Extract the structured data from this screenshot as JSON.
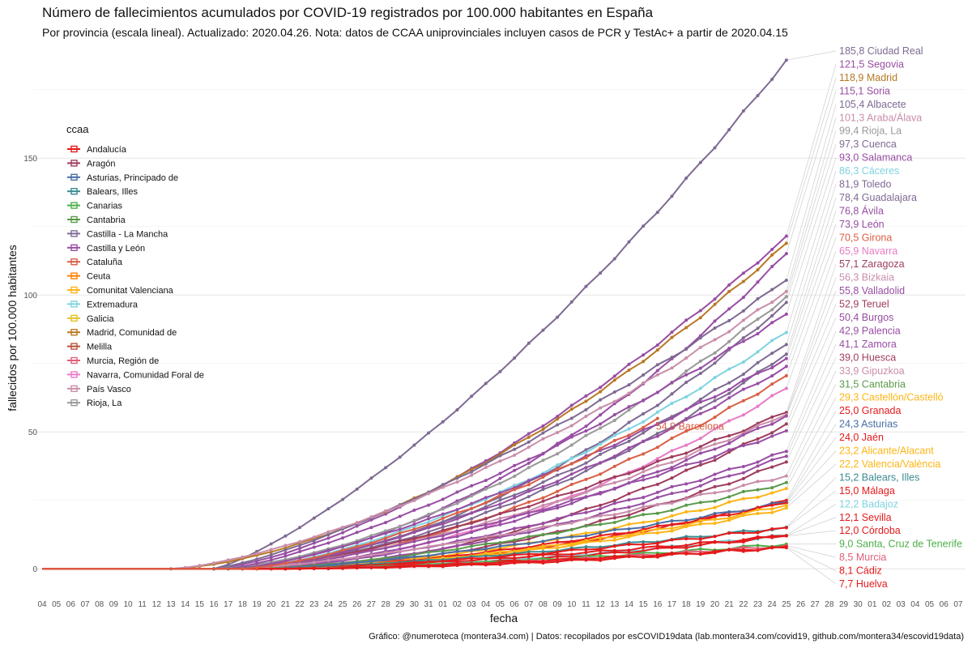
{
  "chart_data": {
    "type": "line",
    "title": "Número de fallecimientos acumulados por COVID-19 registrados por 100.000 habitantes en España",
    "subtitle": "Por provincia  (escala lineal). Actualizado: 2020.04.26. Nota: datos de CCAA uniprovinciales incluyen casos de PCR y TestAc+ a partir de 2020.04.15",
    "xlabel": "fecha",
    "ylabel": "fallecidos por 100.000 habitantes",
    "ylim": [
      -10,
      190
    ],
    "yticks": [
      0,
      50,
      100,
      150
    ],
    "xticks": [
      "04",
      "05",
      "06",
      "07",
      "08",
      "09",
      "10",
      "11",
      "12",
      "13",
      "14",
      "15",
      "16",
      "17",
      "18",
      "19",
      "20",
      "21",
      "22",
      "23",
      "24",
      "25",
      "26",
      "27",
      "28",
      "29",
      "30",
      "31",
      "01",
      "02",
      "03",
      "04",
      "05",
      "06",
      "07",
      "08",
      "09",
      "10",
      "11",
      "12",
      "13",
      "14",
      "15",
      "16",
      "17",
      "18",
      "19",
      "20",
      "21",
      "22",
      "23",
      "24",
      "25",
      "26",
      "27",
      "28",
      "29",
      "30",
      "01",
      "02",
      "03",
      "04",
      "05",
      "06",
      "07"
    ],
    "grid": true,
    "legend_title": "ccaa",
    "legend_position": "left-top",
    "caption": "Gráfico: @numeroteca (montera34.com) | Datos: recopilados por esCOVID19data (lab.montera34.com/covid19, github.com/montera34/escovid19data)",
    "legend": [
      {
        "name": "Andalucía",
        "color": "#e41a1c"
      },
      {
        "name": "Aragón",
        "color": "#9e3d5d"
      },
      {
        "name": "Asturias, Principado de",
        "color": "#4a6fa5"
      },
      {
        "name": "Balears, Illes",
        "color": "#3a8a8f"
      },
      {
        "name": "Canarias",
        "color": "#4daf4a"
      },
      {
        "name": "Cantabria",
        "color": "#5a9a4a"
      },
      {
        "name": "Castilla - La Mancha",
        "color": "#7e6a93"
      },
      {
        "name": "Castilla y León",
        "color": "#984ea3"
      },
      {
        "name": "Cataluña",
        "color": "#d95f45"
      },
      {
        "name": "Ceuta",
        "color": "#ff7f00"
      },
      {
        "name": "Comunitat Valenciana",
        "color": "#fdb515"
      },
      {
        "name": "Extremadura",
        "color": "#7fd3e0"
      },
      {
        "name": "Galicia",
        "color": "#e6c229"
      },
      {
        "name": "Madrid, Comunidad de",
        "color": "#b87825"
      },
      {
        "name": "Melilla",
        "color": "#b5533c"
      },
      {
        "name": "Murcia, Región de",
        "color": "#e0607a"
      },
      {
        "name": "Navarra, Comunidad Foral de",
        "color": "#e77bc6"
      },
      {
        "name": "País Vasco",
        "color": "#c98eaa"
      },
      {
        "name": "Rioja, La",
        "color": "#999999"
      }
    ],
    "series": [
      {
        "name": "Ciudad Real",
        "label": "185,8 Ciudad Real",
        "color": "#7e6a93",
        "start": 12,
        "end": 52,
        "final": 185.8
      },
      {
        "name": "Segovia",
        "label": "121,5 Segovia",
        "color": "#984ea3",
        "start": 12,
        "end": 52,
        "final": 121.5
      },
      {
        "name": "Madrid",
        "label": "118,9 Madrid",
        "color": "#b87825",
        "start": 9,
        "end": 52,
        "final": 118.9
      },
      {
        "name": "Soria",
        "label": "115,1 Soria",
        "color": "#984ea3",
        "start": 12,
        "end": 52,
        "final": 115.1
      },
      {
        "name": "Albacete",
        "label": "105,4 Albacete",
        "color": "#7e6a93",
        "start": 12,
        "end": 52,
        "final": 105.4
      },
      {
        "name": "Araba/Álava",
        "label": "101,3 Araba/Álava",
        "color": "#c98eaa",
        "start": 9,
        "end": 52,
        "final": 101.3
      },
      {
        "name": "Rioja, La",
        "label": "99,4 Rioja, La",
        "color": "#999999",
        "start": 12,
        "end": 52,
        "final": 99.4
      },
      {
        "name": "Cuenca",
        "label": "97,3 Cuenca",
        "color": "#7e6a93",
        "start": 13,
        "end": 52,
        "final": 97.3
      },
      {
        "name": "Salamanca",
        "label": "93,0 Salamanca",
        "color": "#984ea3",
        "start": 13,
        "end": 52,
        "final": 93.0
      },
      {
        "name": "Cáceres",
        "label": "86,3 Cáceres",
        "color": "#7fd3e0",
        "start": 14,
        "end": 52,
        "final": 86.3
      },
      {
        "name": "Toledo",
        "label": "81,9 Toledo",
        "color": "#7e6a93",
        "start": 13,
        "end": 52,
        "final": 81.9
      },
      {
        "name": "Guadalajara",
        "label": "78,4 Guadalajara",
        "color": "#7e6a93",
        "start": 12,
        "end": 52,
        "final": 78.4
      },
      {
        "name": "Ávila",
        "label": "76,8 Ávila",
        "color": "#984ea3",
        "start": 14,
        "end": 52,
        "final": 76.8
      },
      {
        "name": "León",
        "label": "73,9 León",
        "color": "#984ea3",
        "start": 14,
        "end": 52,
        "final": 73.9
      },
      {
        "name": "Girona",
        "label": "70,5 Girona",
        "color": "#d95f45",
        "start": 14,
        "end": 52,
        "final": 70.5
      },
      {
        "name": "Navarra",
        "label": "65,9 Navarra",
        "color": "#e77bc6",
        "start": 14,
        "end": 52,
        "final": 65.9
      },
      {
        "name": "Zaragoza",
        "label": "57,1 Zaragoza",
        "color": "#9e3d5d",
        "start": 15,
        "end": 52,
        "final": 57.1
      },
      {
        "name": "Bizkaia",
        "label": "56,3 Bizkaia",
        "color": "#c98eaa",
        "start": 14,
        "end": 52,
        "final": 56.3
      },
      {
        "name": "Valladolid",
        "label": "55,8 Valladolid",
        "color": "#984ea3",
        "start": 14,
        "end": 52,
        "final": 55.8
      },
      {
        "name": "Teruel",
        "label": "52,9 Teruel",
        "color": "#9e3d5d",
        "start": 16,
        "end": 52,
        "final": 52.9
      },
      {
        "name": "Burgos",
        "label": "50,4 Burgos",
        "color": "#984ea3",
        "start": 15,
        "end": 52,
        "final": 50.4
      },
      {
        "name": "Palencia",
        "label": "42,9 Palencia",
        "color": "#984ea3",
        "start": 15,
        "end": 52,
        "final": 42.9
      },
      {
        "name": "Zamora",
        "label": "41,1 Zamora",
        "color": "#984ea3",
        "start": 15,
        "end": 52,
        "final": 41.1
      },
      {
        "name": "Huesca",
        "label": "39,0 Huesca",
        "color": "#9e3d5d",
        "start": 16,
        "end": 52,
        "final": 39.0
      },
      {
        "name": "Gipuzkoa",
        "label": "33,9 Gipuzkoa",
        "color": "#c98eaa",
        "start": 14,
        "end": 52,
        "final": 33.9
      },
      {
        "name": "Cantabria",
        "label": "31,5 Cantabria",
        "color": "#5a9a4a",
        "start": 15,
        "end": 52,
        "final": 31.5
      },
      {
        "name": "Castellón/Castelló",
        "label": "29,3 Castellón/Castelló",
        "color": "#fdb515",
        "start": 16,
        "end": 52,
        "final": 29.3
      },
      {
        "name": "Granada",
        "label": "25,0 Granada",
        "color": "#e41a1c",
        "start": 16,
        "end": 52,
        "final": 25.0
      },
      {
        "name": "Asturias",
        "label": "24,3 Asturias",
        "color": "#4a6fa5",
        "start": 16,
        "end": 52,
        "final": 24.3
      },
      {
        "name": "Jaén",
        "label": "24,0 Jaén",
        "color": "#e41a1c",
        "start": 17,
        "end": 52,
        "final": 24.0
      },
      {
        "name": "Alicante/Alacant",
        "label": "23,2 Alicante/Alacant",
        "color": "#fdb515",
        "start": 16,
        "end": 52,
        "final": 23.2
      },
      {
        "name": "Valencia/València",
        "label": "22,2 Valencia/València",
        "color": "#fdb515",
        "start": 15,
        "end": 52,
        "final": 22.2
      },
      {
        "name": "Balears, Illes",
        "label": "15,2 Balears, Illes",
        "color": "#3a8a8f",
        "start": 16,
        "end": 52,
        "final": 15.2
      },
      {
        "name": "Málaga",
        "label": "15,0 Málaga",
        "color": "#e41a1c",
        "start": 16,
        "end": 52,
        "final": 15.0
      },
      {
        "name": "Badajoz",
        "label": "12,2 Badajoz",
        "color": "#7fd3e0",
        "start": 16,
        "end": 52,
        "final": 12.2
      },
      {
        "name": "Sevilla",
        "label": "12,1 Sevilla",
        "color": "#e41a1c",
        "start": 16,
        "end": 52,
        "final": 12.1
      },
      {
        "name": "Córdoba",
        "label": "12,0 Córdoba",
        "color": "#e41a1c",
        "start": 17,
        "end": 52,
        "final": 12.0
      },
      {
        "name": "Santa Cruz de Tenerife",
        "label": "9,0 Santa, Cruz de Tenerife",
        "color": "#4daf4a",
        "start": 16,
        "end": 52,
        "final": 9.0
      },
      {
        "name": "Murcia",
        "label": "8,5 Murcia",
        "color": "#e0607a",
        "start": 16,
        "end": 52,
        "final": 8.5
      },
      {
        "name": "Cádiz",
        "label": "8,1 Cádiz",
        "color": "#e41a1c",
        "start": 17,
        "end": 52,
        "final": 8.1
      },
      {
        "name": "Huelva",
        "label": "7,7 Huelva",
        "color": "#e41a1c",
        "start": 18,
        "end": 52,
        "final": 7.7
      },
      {
        "name": "Barcelona",
        "label": "54,9 Barcelona",
        "color": "#d95f45",
        "start": 14,
        "end": 43,
        "final": 54.9
      }
    ]
  }
}
